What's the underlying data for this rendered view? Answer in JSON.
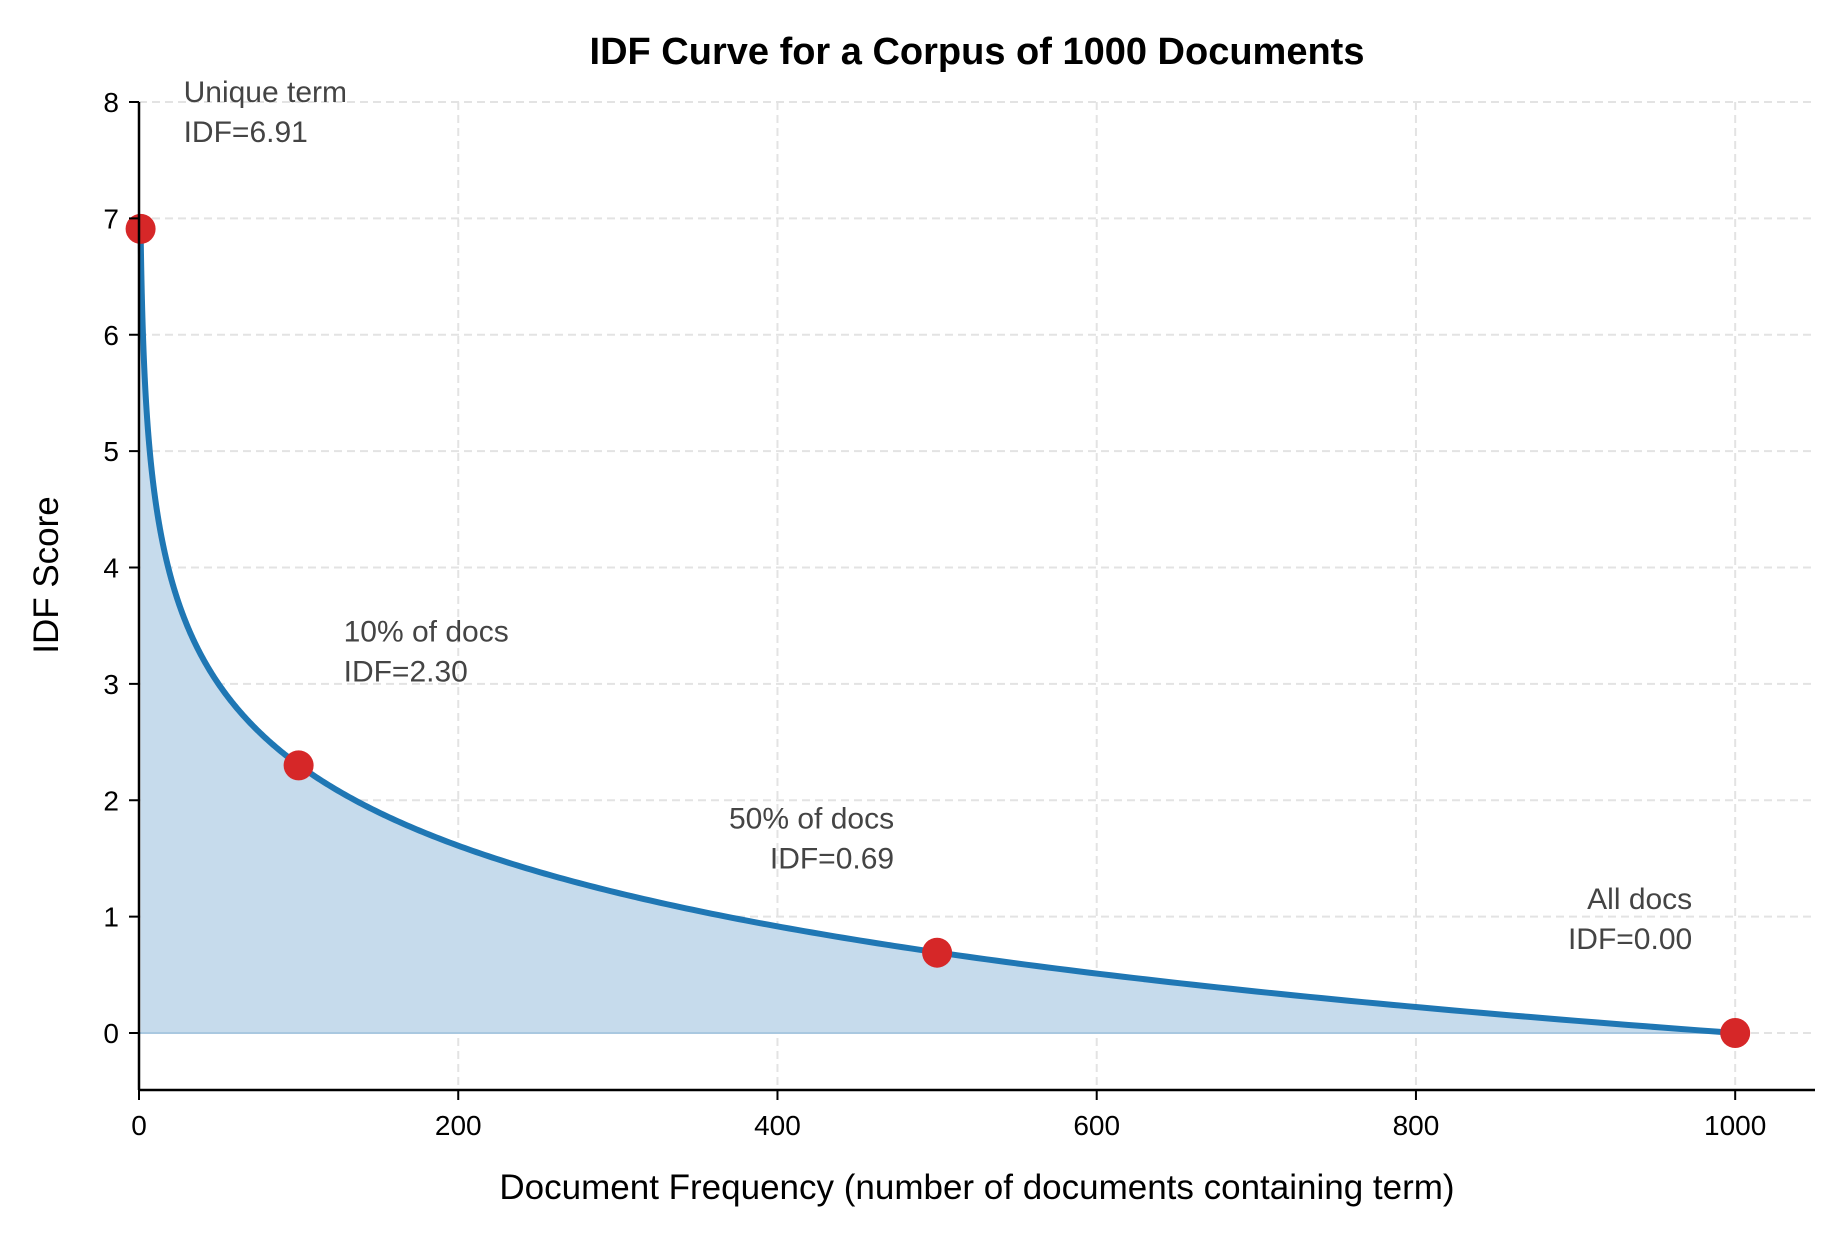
{
  "chart_data": {
    "type": "line",
    "title": "IDF Curve for a Corpus of 1000 Documents",
    "xlabel": "Document Frequency (number of documents containing term)",
    "ylabel": "IDF Score",
    "xlim": [
      0,
      1050
    ],
    "ylim": [
      -0.5,
      8
    ],
    "xticks": [
      0,
      200,
      400,
      600,
      800,
      1000
    ],
    "yticks": [
      0,
      1,
      2,
      3,
      4,
      5,
      6,
      7,
      8
    ],
    "grid": true,
    "corpus_size": 1000,
    "curve": {
      "formula": "ln(1000/df)",
      "df_range": [
        1,
        1000
      ],
      "color": "#1f77b4",
      "fill_color": "#c6dbec"
    },
    "highlight_points": [
      {
        "x": 1,
        "y": 6.91,
        "label": "Unique term",
        "value_label": "IDF=6.91"
      },
      {
        "x": 100,
        "y": 2.3,
        "label": "10% of docs",
        "value_label": "IDF=2.30"
      },
      {
        "x": 500,
        "y": 0.69,
        "label": "50% of docs",
        "value_label": "IDF=0.69"
      },
      {
        "x": 1000,
        "y": 0.0,
        "label": "All docs",
        "value_label": "IDF=0.00"
      }
    ],
    "point_color": "#d62728"
  }
}
